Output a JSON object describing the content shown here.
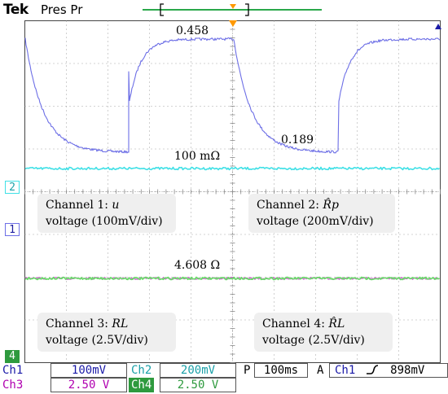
{
  "header": {
    "logo": "Tek",
    "mode": "Pres Pr"
  },
  "colors": {
    "ch1": "#6d6fe6",
    "ch2": "#3fe0e6",
    "ch3": "#cc66cc",
    "ch4": "#66dd66",
    "grid": "#8a8a8a",
    "trigger": "#ff9900",
    "record_bar": "#2aa84a"
  },
  "annotations": {
    "peak_value": "0.458",
    "low_value": "0.189",
    "ch2_level": "100 mΩ",
    "ch4_level": "4.608 Ω"
  },
  "channel_notes": {
    "ch1": {
      "line1": "Channel 1:",
      "sym": "u",
      "line2": "voltage (100mV/div)"
    },
    "ch2": {
      "line1": "Channel 2:",
      "sym": "R̂p",
      "line2": "voltage (200mV/div)"
    },
    "ch3": {
      "line1": "Channel 3:",
      "sym": "RL",
      "line2": "voltage (2.5V/div)"
    },
    "ch4": {
      "line1": "Channel 4:",
      "sym": "R̂L",
      "line2": "voltage (2.5V/div)"
    }
  },
  "markers": {
    "ch2": "2",
    "ch1": "1",
    "ch4": "4"
  },
  "readouts": {
    "ch1_label": "Ch1",
    "ch1_scale": "100mV",
    "ch2_label": "Ch2",
    "ch2_scale": "200mV",
    "ch3_label": "Ch3",
    "ch3_scale": "2.50 V",
    "ch4_label": "Ch4",
    "ch4_scale": "2.50 V",
    "timebase_prefix": "P",
    "timebase": "100ms",
    "trigger_mode": "A",
    "trigger_source": "Ch1",
    "trigger_slope_icon": "rising-edge-icon",
    "trigger_level": "898mV"
  }
}
